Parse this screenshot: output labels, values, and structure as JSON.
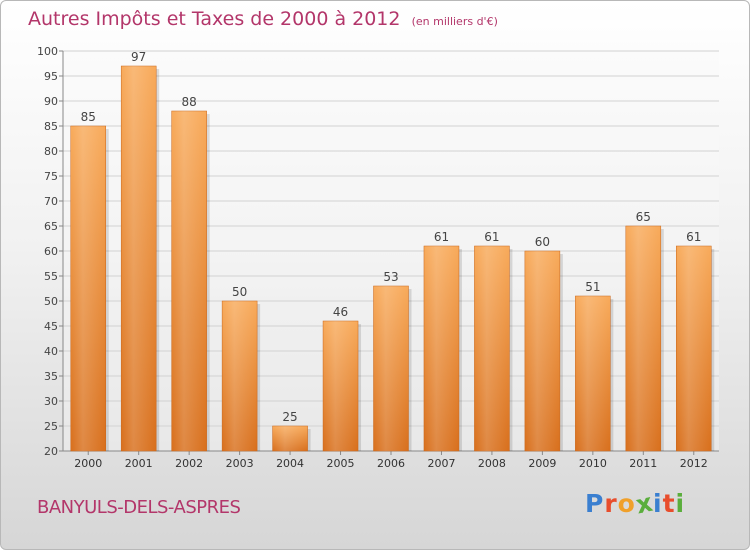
{
  "title": "Autres Impôts et Taxes de 2000 à 2012",
  "subtitle": "(en milliers d'€)",
  "commune": "BANYULS-DELS-ASPRES",
  "logo": {
    "letters": [
      "P",
      "r",
      "o",
      "x",
      "i",
      "t",
      "i"
    ],
    "colors": [
      "#3a7fd0",
      "#e84d2c",
      "#f0a02a",
      "#5aae3c",
      "#3a7fd0",
      "#e84d2c",
      "#5aae3c"
    ]
  },
  "colors": {
    "bar_light": "#f8aa5a",
    "bar_dark": "#d86f1c",
    "title": "#b3366a"
  },
  "chart_data": {
    "type": "bar",
    "categories": [
      "2000",
      "2001",
      "2002",
      "2003",
      "2004",
      "2005",
      "2006",
      "2007",
      "2008",
      "2009",
      "2010",
      "2011",
      "2012"
    ],
    "values": [
      85,
      97,
      88,
      50,
      25,
      46,
      53,
      61,
      61,
      60,
      51,
      65,
      61
    ],
    "ylim": [
      20,
      100
    ],
    "yticks": [
      20,
      25,
      30,
      35,
      40,
      45,
      50,
      55,
      60,
      65,
      70,
      75,
      80,
      85,
      90,
      95,
      100
    ],
    "grid": true
  }
}
